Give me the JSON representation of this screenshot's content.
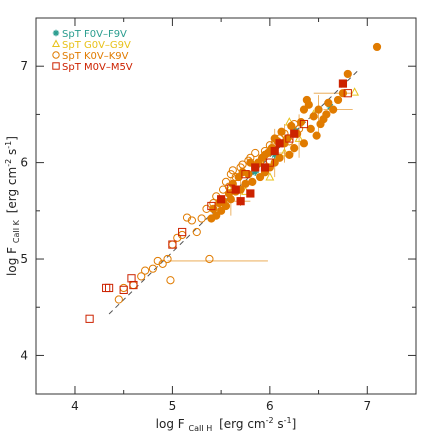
{
  "chart_data": {
    "type": "scatter",
    "xlabel": "log F Call H [erg cm-2 s-1]",
    "ylabel": "log F Call K [erg cm-2 s-1]",
    "xlabel_parts": {
      "main": "log F",
      "sub": "CaII H",
      "unit": "[erg cm",
      "exp1": "-2",
      "mid": " s",
      "exp2": "-1",
      "end": "]"
    },
    "ylabel_parts": {
      "main": "log F",
      "sub": "CaII K",
      "unit": "[erg cm",
      "exp1": "-2",
      "mid": " s",
      "exp2": "-1",
      "end": "]"
    },
    "xlim": [
      3.6,
      7.5
    ],
    "ylim": [
      3.6,
      7.5
    ],
    "xticks": [
      "4",
      "5",
      "6",
      "7"
    ],
    "yticks": [
      "4",
      "5",
      "6",
      "7"
    ],
    "grid": false,
    "legend_position": "top-left",
    "fit_line": {
      "x": [
        4.35,
        6.9
      ],
      "y": [
        4.43,
        6.95
      ],
      "style": "dashed"
    },
    "series": [
      {
        "name": "SpT F0V–F9V",
        "color": "#2a9d8f",
        "marker": "star",
        "filled": false,
        "points": [
          [
            6.25,
            6.35
          ],
          [
            6.05,
            6.08
          ],
          [
            6.62,
            6.58
          ],
          [
            5.85,
            5.9
          ]
        ]
      },
      {
        "name": "SpT G0V–G9V",
        "color": "#e8c21a",
        "marker": "triangle",
        "filled": false,
        "points": [
          [
            6.87,
            6.73
          ],
          [
            5.95,
            6.0
          ],
          [
            6.15,
            6.1
          ],
          [
            5.6,
            5.75
          ],
          [
            6.3,
            6.25
          ],
          [
            5.75,
            5.7
          ],
          [
            6.45,
            6.5
          ],
          [
            6.0,
            5.85
          ],
          [
            6.2,
            6.42
          ]
        ]
      },
      {
        "name": "SpT K0V–K9V",
        "color": "#e07b00",
        "marker": "circle",
        "filled": false,
        "points": [
          [
            4.45,
            4.58
          ],
          [
            4.5,
            4.7
          ],
          [
            4.6,
            4.73
          ],
          [
            4.68,
            4.82
          ],
          [
            4.72,
            4.88
          ],
          [
            4.8,
            4.9
          ],
          [
            4.85,
            4.98
          ],
          [
            4.9,
            4.95
          ],
          [
            4.95,
            5.0
          ],
          [
            4.98,
            4.78
          ],
          [
            5.0,
            5.15
          ],
          [
            5.05,
            5.22
          ],
          [
            5.1,
            5.25
          ],
          [
            5.15,
            5.43
          ],
          [
            5.2,
            5.4
          ],
          [
            5.25,
            5.28
          ],
          [
            5.3,
            5.42
          ],
          [
            5.35,
            5.52
          ],
          [
            5.38,
            5.0
          ],
          [
            5.42,
            5.58
          ],
          [
            5.45,
            5.65
          ],
          [
            5.5,
            5.6
          ],
          [
            5.52,
            5.72
          ],
          [
            5.55,
            5.8
          ],
          [
            5.58,
            5.75
          ],
          [
            5.6,
            5.88
          ],
          [
            5.62,
            5.92
          ],
          [
            5.65,
            5.85
          ],
          [
            5.7,
            5.95
          ],
          [
            5.72,
            5.98
          ],
          [
            5.78,
            6.02
          ],
          [
            5.8,
            6.05
          ],
          [
            5.85,
            6.1
          ],
          [
            5.9,
            6.0
          ],
          [
            5.95,
            6.12
          ],
          [
            6.0,
            6.18
          ],
          [
            6.05,
            6.2
          ],
          [
            6.1,
            6.25
          ],
          [
            6.15,
            6.3
          ],
          [
            6.2,
            6.22
          ],
          [
            6.25,
            6.4
          ],
          [
            6.3,
            6.35
          ]
        ]
      },
      {
        "name": "SpT K0V–K9V (filled)",
        "color": "#e07b00",
        "marker": "circle",
        "filled": true,
        "points": [
          [
            7.1,
            7.2
          ],
          [
            6.8,
            6.92
          ],
          [
            6.75,
            6.72
          ],
          [
            6.7,
            6.65
          ],
          [
            6.6,
            6.62
          ],
          [
            6.55,
            6.45
          ],
          [
            6.5,
            6.55
          ],
          [
            6.45,
            6.48
          ],
          [
            6.42,
            6.35
          ],
          [
            6.4,
            6.6
          ],
          [
            6.38,
            6.65
          ],
          [
            6.35,
            6.2
          ],
          [
            6.32,
            6.42
          ],
          [
            6.28,
            6.3
          ],
          [
            6.25,
            6.15
          ],
          [
            6.22,
            6.38
          ],
          [
            6.2,
            6.08
          ],
          [
            6.18,
            6.25
          ],
          [
            6.15,
            6.2
          ],
          [
            6.12,
            6.32
          ],
          [
            6.1,
            6.05
          ],
          [
            6.08,
            6.22
          ],
          [
            6.05,
            6.0
          ],
          [
            6.02,
            6.15
          ],
          [
            6.0,
            5.95
          ],
          [
            5.98,
            6.1
          ],
          [
            5.95,
            5.9
          ],
          [
            5.92,
            6.05
          ],
          [
            5.9,
            5.85
          ],
          [
            5.88,
            6.0
          ],
          [
            5.85,
            5.95
          ],
          [
            5.82,
            5.8
          ],
          [
            5.8,
            6.0
          ],
          [
            5.78,
            5.88
          ],
          [
            5.75,
            5.78
          ],
          [
            5.72,
            5.9
          ],
          [
            5.7,
            5.72
          ],
          [
            5.68,
            5.85
          ],
          [
            5.65,
            5.7
          ],
          [
            5.62,
            5.78
          ],
          [
            5.6,
            5.62
          ],
          [
            5.58,
            5.68
          ],
          [
            5.55,
            5.55
          ],
          [
            5.52,
            5.6
          ],
          [
            5.5,
            5.5
          ],
          [
            5.48,
            5.58
          ],
          [
            5.45,
            5.45
          ],
          [
            5.42,
            5.52
          ],
          [
            5.4,
            5.42
          ],
          [
            6.48,
            6.28
          ],
          [
            6.52,
            6.4
          ],
          [
            6.58,
            6.5
          ],
          [
            6.65,
            6.55
          ],
          [
            6.35,
            6.55
          ],
          [
            6.05,
            6.25
          ],
          [
            5.95,
            6.08
          ]
        ]
      },
      {
        "name": "SpT M0V–M5V",
        "color": "#cc2200",
        "marker": "square",
        "filled": false,
        "points": [
          [
            4.15,
            4.38
          ],
          [
            4.32,
            4.7
          ],
          [
            4.35,
            4.7
          ],
          [
            4.5,
            4.68
          ],
          [
            4.58,
            4.8
          ],
          [
            4.6,
            4.73
          ],
          [
            5.0,
            5.15
          ],
          [
            5.1,
            5.28
          ],
          [
            5.4,
            5.55
          ],
          [
            5.6,
            5.73
          ],
          [
            5.75,
            5.88
          ],
          [
            6.0,
            6.0
          ],
          [
            6.2,
            6.25
          ],
          [
            6.35,
            6.4
          ],
          [
            6.8,
            6.72
          ]
        ]
      },
      {
        "name": "SpT M0V–M5V (filled)",
        "color": "#cc2200",
        "marker": "square",
        "filled": true,
        "points": [
          [
            5.5,
            5.62
          ],
          [
            5.65,
            5.72
          ],
          [
            5.8,
            5.68
          ],
          [
            5.95,
            5.95
          ],
          [
            6.1,
            6.2
          ],
          [
            6.25,
            6.3
          ],
          [
            6.75,
            6.82
          ],
          [
            5.85,
            5.95
          ],
          [
            6.05,
            6.12
          ],
          [
            5.7,
            5.6
          ]
        ]
      }
    ],
    "error_bars": [
      {
        "x": [
          4.95,
          5.98
        ],
        "y": [
          4.98,
          4.98
        ]
      },
      {
        "x": [
          6.45,
          6.85
        ],
        "y": [
          6.72,
          6.72
        ]
      },
      {
        "x": [
          6.05,
          6.05
        ],
        "y": [
          5.85,
          6.35
        ]
      },
      {
        "x": [
          6.3,
          6.3
        ],
        "y": [
          6.05,
          6.5
        ]
      },
      {
        "x": [
          5.7,
          5.7
        ],
        "y": [
          5.55,
          5.95
        ]
      },
      {
        "x": [
          6.5,
          6.5
        ],
        "y": [
          6.3,
          6.7
        ]
      },
      {
        "x": [
          5.95,
          6.25
        ],
        "y": [
          6.1,
          6.1
        ]
      },
      {
        "x": [
          5.45,
          5.8
        ],
        "y": [
          5.6,
          5.6
        ]
      },
      {
        "x": [
          6.55,
          6.85
        ],
        "y": [
          6.55,
          6.55
        ]
      },
      {
        "x": [
          6.15,
          6.15
        ],
        "y": [
          6.0,
          6.4
        ]
      },
      {
        "x": [
          5.6,
          5.6
        ],
        "y": [
          5.45,
          5.85
        ]
      }
    ],
    "legend": [
      {
        "label": "SpT F0V–F9V",
        "color": "#2a9d8f",
        "marker": "star"
      },
      {
        "label": "SpT G0V–G9V",
        "color": "#e8c21a",
        "marker": "triangle"
      },
      {
        "label": "SpT K0V–K9V",
        "color": "#e07b00",
        "marker": "circle"
      },
      {
        "label": "SpT M0V–M5V",
        "color": "#cc2200",
        "marker": "square"
      }
    ]
  }
}
